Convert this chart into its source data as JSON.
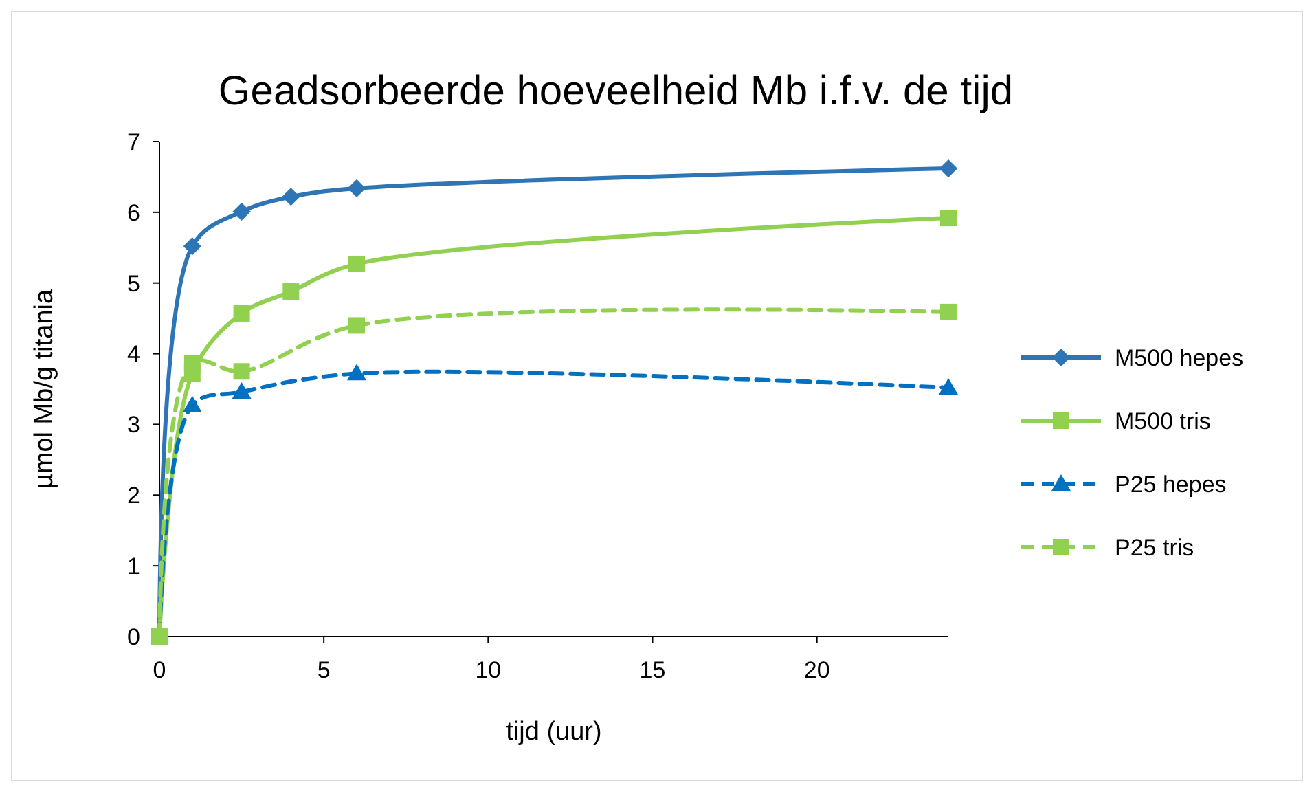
{
  "chart_data": {
    "type": "line",
    "title": "Geadsorbeerde hoeveelheid Mb i.f.v. de tijd",
    "xlabel": "tijd (uur)",
    "ylabel": "µmol Mb/g titania",
    "xlim": [
      0,
      24
    ],
    "xticks": [
      0,
      5,
      10,
      15,
      20
    ],
    "ylim": [
      0,
      7
    ],
    "yticks": [
      0,
      1,
      2,
      3,
      4,
      5,
      6,
      7
    ],
    "grid": false,
    "legend": "right",
    "series": [
      {
        "name": "M500 hepes",
        "color": "#2e75b6",
        "marker": "diamond",
        "line_style": "solid",
        "x": [
          0,
          1,
          2.5,
          4,
          6,
          24
        ],
        "values": [
          0,
          5.52,
          6.01,
          6.22,
          6.34,
          6.62
        ]
      },
      {
        "name": "M500 tris",
        "color": "#92d050",
        "marker": "square",
        "line_style": "solid",
        "x": [
          0,
          1,
          2.5,
          4,
          6,
          24
        ],
        "values": [
          0,
          3.72,
          4.57,
          4.88,
          5.27,
          5.92
        ]
      },
      {
        "name": "P25 hepes",
        "color": "#0070c0",
        "marker": "triangle",
        "line_style": "dashed",
        "x": [
          0,
          1,
          2.5,
          6,
          24
        ],
        "values": [
          0,
          3.27,
          3.46,
          3.72,
          3.52
        ]
      },
      {
        "name": "P25 tris",
        "color": "#92d050",
        "marker": "square",
        "line_style": "dashed",
        "x": [
          0,
          1,
          2.5,
          6,
          24
        ],
        "values": [
          0,
          3.87,
          3.75,
          4.4,
          4.59
        ]
      }
    ]
  }
}
